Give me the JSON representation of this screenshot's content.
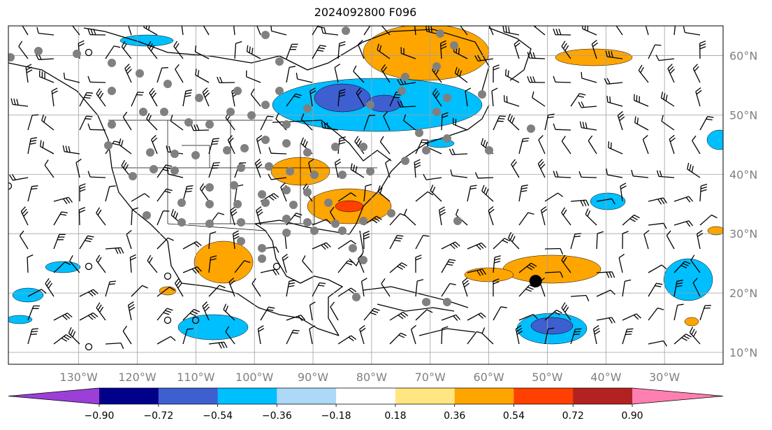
{
  "title": "2024092800 F096",
  "map": {
    "lon_range": [
      -142,
      -20
    ],
    "lat_range": [
      8,
      65
    ],
    "lon_ticks": [
      {
        "value": -130,
        "label": "130°W"
      },
      {
        "value": -120,
        "label": "120°W"
      },
      {
        "value": -110,
        "label": "110°W"
      },
      {
        "value": -100,
        "label": "100°W"
      },
      {
        "value": -90,
        "label": "90°W"
      },
      {
        "value": -80,
        "label": "80°W"
      },
      {
        "value": -70,
        "label": "70°W"
      },
      {
        "value": -60,
        "label": "60°W"
      },
      {
        "value": -50,
        "label": "50°W"
      },
      {
        "value": -40,
        "label": "40°W"
      },
      {
        "value": -30,
        "label": "30°W"
      }
    ],
    "lat_ticks": [
      {
        "value": 60,
        "label": "60°N"
      },
      {
        "value": 50,
        "label": "50°N"
      },
      {
        "value": 40,
        "label": "40°N"
      },
      {
        "value": 30,
        "label": "30°N"
      },
      {
        "value": 20,
        "label": "20°N"
      },
      {
        "value": 10,
        "label": "10°N"
      }
    ],
    "colors": {
      "grid": "#a0a0a0",
      "coast": "#000000",
      "station": "#808080"
    },
    "storm_marker": {
      "lon": -52,
      "lat": 22
    }
  },
  "colorbar": {
    "levels": [
      "−0.90",
      "−0.72",
      "−0.54",
      "−0.36",
      "−0.18",
      "0.18",
      "0.36",
      "0.54",
      "0.72",
      "0.90"
    ],
    "colors": [
      "#9b3fd6",
      "#00008b",
      "#3e5fcf",
      "#00bfff",
      "#add8f7",
      "#ffffff",
      "#ffe680",
      "#ffa500",
      "#ff4000",
      "#b22222",
      "#ff80b0"
    ]
  }
}
